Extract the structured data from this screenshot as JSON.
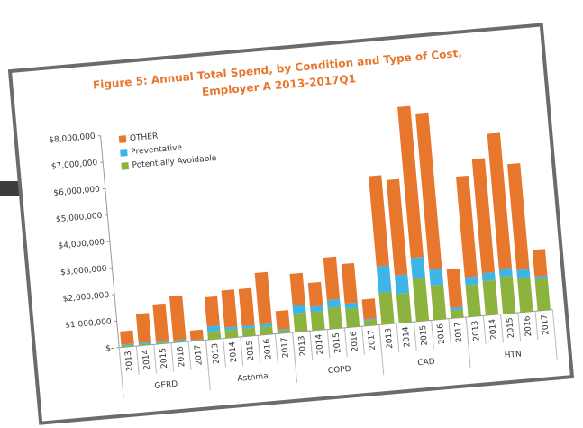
{
  "chart_data": {
    "type": "stacked_bar",
    "title": "Figure 5: Annual Total Spend, by Condition and Type of Cost,",
    "subtitle": "Employer A 2013-2017Q1",
    "categories": [
      "2013",
      "2014",
      "2015",
      "2016",
      "2017",
      "2013",
      "2014",
      "2015",
      "2016",
      "2017",
      "2013",
      "2014",
      "2015",
      "2016",
      "2017",
      "2013",
      "2014",
      "2015",
      "2016",
      "2017",
      "2013",
      "2014",
      "2015",
      "2016",
      "2017"
    ],
    "groups": [
      "GERD",
      "Asthma",
      "COPD",
      "CAD",
      "HTN"
    ],
    "series": [
      {
        "name": "Potentially Avoidable",
        "color": "#8db33f",
        "values": [
          50000,
          50000,
          50000,
          50000,
          20000,
          300000,
          300000,
          300000,
          300000,
          100000,
          700000,
          700000,
          800000,
          700000,
          200000,
          1200000,
          1100000,
          1600000,
          1300000,
          300000,
          1200000,
          1300000,
          1400000,
          1300000,
          1200000
        ]
      },
      {
        "name": "Preventative",
        "color": "#3fb4e6",
        "values": [
          50000,
          50000,
          50000,
          50000,
          20000,
          200000,
          100000,
          100000,
          100000,
          50000,
          300000,
          200000,
          300000,
          200000,
          50000,
          1000000,
          700000,
          800000,
          600000,
          100000,
          300000,
          300000,
          300000,
          300000,
          100000
        ]
      },
      {
        "name": "OTHER",
        "color": "#e8772e",
        "values": [
          500000,
          1100000,
          1400000,
          1650000,
          360000,
          1100000,
          1400000,
          1400000,
          1950000,
          700000,
          1200000,
          900000,
          1600000,
          1500000,
          750000,
          3400000,
          3600000,
          5700000,
          5900000,
          1450000,
          3800000,
          4300000,
          5100000,
          4000000,
          1000000
        ]
      }
    ],
    "ylim": [
      0,
      8000000
    ],
    "yticks": [
      {
        "value": 0,
        "label": "$-"
      },
      {
        "value": 1000000,
        "label": "$1,000,000"
      },
      {
        "value": 2000000,
        "label": "$2,000,000"
      },
      {
        "value": 3000000,
        "label": "$3,000,000"
      },
      {
        "value": 4000000,
        "label": "$4,000,000"
      },
      {
        "value": 5000000,
        "label": "$5,000,000"
      },
      {
        "value": 6000000,
        "label": "$6,000,000"
      },
      {
        "value": 7000000,
        "label": "$7,000,000"
      },
      {
        "value": 8000000,
        "label": "$8,000,000"
      }
    ],
    "grid": false,
    "legend": "top-left"
  }
}
